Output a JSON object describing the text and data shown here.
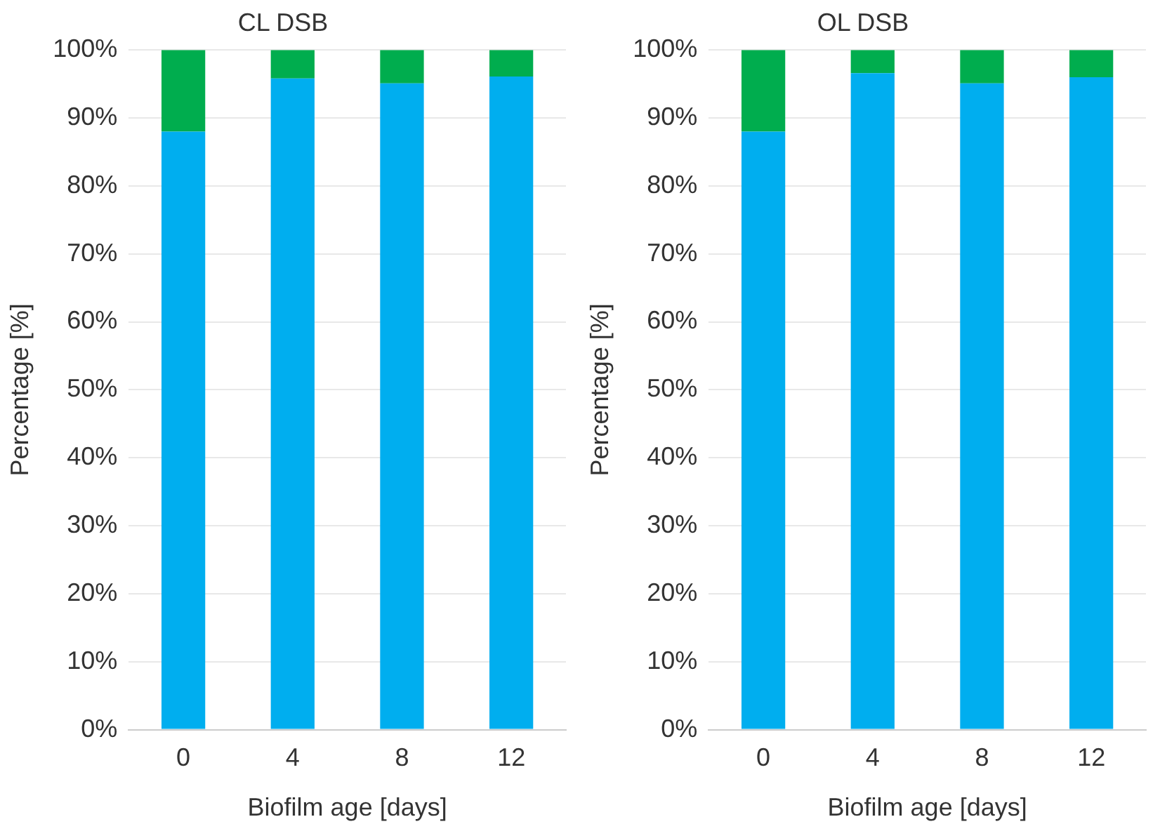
{
  "chart_data": [
    {
      "type": "bar",
      "title": "CL DSB",
      "xlabel": "Biofilm age [days]",
      "ylabel": "Percentage [%]",
      "categories": [
        "0",
        "4",
        "8",
        "12"
      ],
      "stacked": true,
      "grid": "y",
      "legend": false,
      "series": [
        {
          "color": "#00aeef",
          "values": [
            88,
            95.8,
            95.1,
            96.1
          ]
        },
        {
          "color": "#00ad4e",
          "values": [
            12,
            4.2,
            4.9,
            3.9
          ]
        }
      ],
      "ylim": [
        0,
        100
      ],
      "yticks": [
        {
          "value": 0,
          "label": "0%"
        },
        {
          "value": 10,
          "label": "10%"
        },
        {
          "value": 20,
          "label": "20%"
        },
        {
          "value": 30,
          "label": "30%"
        },
        {
          "value": 40,
          "label": "40%"
        },
        {
          "value": 50,
          "label": "50%"
        },
        {
          "value": 60,
          "label": "60%"
        },
        {
          "value": 70,
          "label": "70%"
        },
        {
          "value": 80,
          "label": "80%"
        },
        {
          "value": 90,
          "label": "90%"
        },
        {
          "value": 100,
          "label": "100%"
        }
      ]
    },
    {
      "type": "bar",
      "title": "OL DSB",
      "xlabel": "Biofilm age [days]",
      "ylabel": "Percentage [%]",
      "categories": [
        "0",
        "4",
        "8",
        "12"
      ],
      "stacked": true,
      "grid": "y",
      "legend": false,
      "series": [
        {
          "color": "#00aeef",
          "values": [
            88,
            96.6,
            95.1,
            96
          ]
        },
        {
          "color": "#00ad4e",
          "values": [
            12,
            3.4,
            4.9,
            4
          ]
        }
      ],
      "ylim": [
        0,
        100
      ],
      "yticks": [
        {
          "value": 0,
          "label": "0%"
        },
        {
          "value": 10,
          "label": "10%"
        },
        {
          "value": 20,
          "label": "20%"
        },
        {
          "value": 30,
          "label": "30%"
        },
        {
          "value": 40,
          "label": "40%"
        },
        {
          "value": 50,
          "label": "50%"
        },
        {
          "value": 60,
          "label": "60%"
        },
        {
          "value": 70,
          "label": "70%"
        },
        {
          "value": 80,
          "label": "80%"
        },
        {
          "value": 90,
          "label": "90%"
        },
        {
          "value": 100,
          "label": "100%"
        }
      ]
    }
  ]
}
